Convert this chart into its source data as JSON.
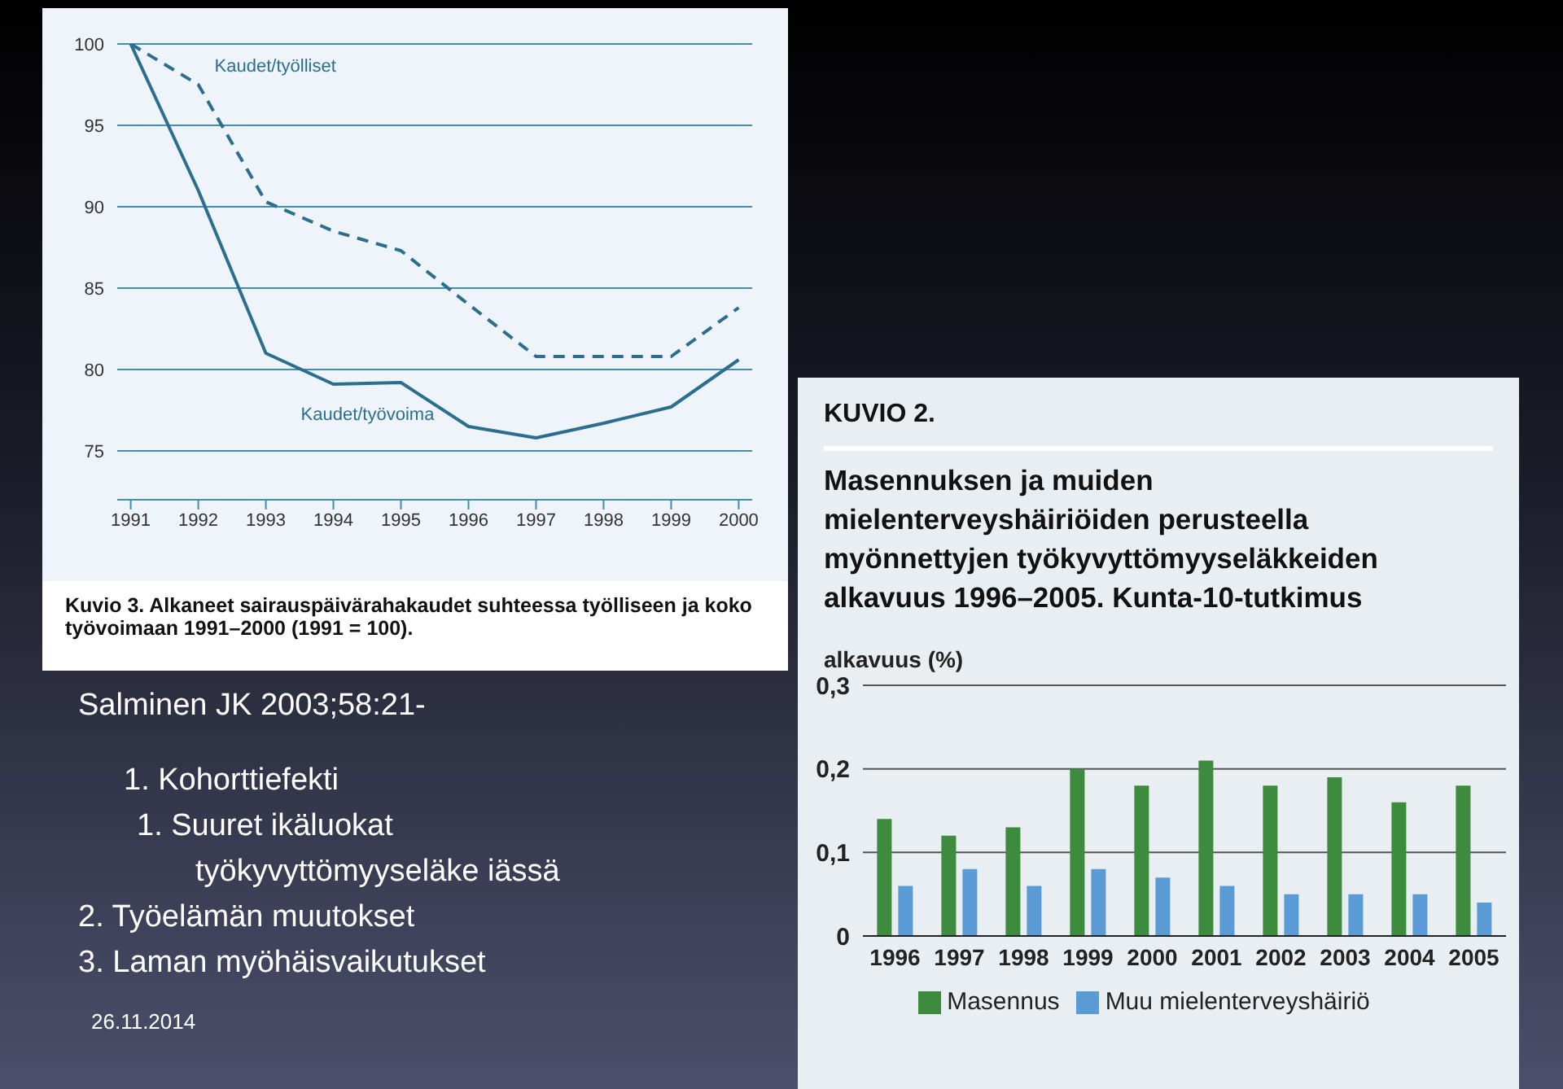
{
  "chart_data": [
    {
      "type": "line",
      "title": "Kuvio 3. Alkaneet sairauspäivärahakaudet suhteessa työlliseen ja koko työvoimaan 1991–2000 (1991 = 100).",
      "x": [
        1991,
        1992,
        1993,
        1994,
        1995,
        1996,
        1997,
        1998,
        1999,
        2000
      ],
      "xlim": [
        1990.8,
        2000.2
      ],
      "xticks": [
        1991,
        1992,
        1993,
        1994,
        1995,
        1996,
        1997,
        1998,
        1999,
        2000
      ],
      "ylim": [
        72,
        100
      ],
      "yticks": [
        75,
        80,
        85,
        90,
        95,
        100
      ],
      "grid": "y",
      "marker": "none",
      "series": [
        {
          "name": "Kaudet/työlliset",
          "color": "#2b6e8f",
          "line_style": "dashed",
          "values": [
            100,
            97.5,
            90.3,
            88.5,
            87.3,
            84,
            80.8,
            80.8,
            80.8,
            83.8
          ]
        },
        {
          "name": "Kaudet/työvoima",
          "color": "#2b6e8f",
          "line_style": "solid",
          "values": [
            100,
            91,
            81,
            79.1,
            79.2,
            76.5,
            75.8,
            76.7,
            77.7,
            80.6
          ]
        }
      ]
    },
    {
      "type": "bar",
      "title": "KUVIO 2.",
      "subtitle": "Masennuksen ja muiden mielenterveyshäiriöiden perusteella myönnettyjen työkyvyttömyyseläkkeiden alkavuus 1996–2005. Kunta-10-tutkimus",
      "ylabel": "alkavuus (%)",
      "categories": [
        "1996",
        "1997",
        "1998",
        "1999",
        "2000",
        "2001",
        "2002",
        "2003",
        "2004",
        "2005"
      ],
      "ylim": [
        0,
        0.3
      ],
      "yticks": [
        {
          "value": 0,
          "label": "0"
        },
        {
          "value": 0.1,
          "label": "0,1"
        },
        {
          "value": 0.2,
          "label": "0,2"
        },
        {
          "value": 0.3,
          "label": "0,3"
        }
      ],
      "grid": "y",
      "legend": "bottom",
      "series": [
        {
          "name": "Masennus",
          "color": "#3d8c3d",
          "values": [
            0.14,
            0.12,
            0.13,
            0.2,
            0.18,
            0.21,
            0.18,
            0.19,
            0.16,
            0.18
          ]
        },
        {
          "name": "Muu mielenterveyshäiriö",
          "color": "#5b9bd5",
          "values": [
            0.06,
            0.08,
            0.06,
            0.08,
            0.07,
            0.06,
            0.05,
            0.05,
            0.05,
            0.04
          ]
        }
      ]
    },
    {
      "type": "other",
      "annotations": [
        "Salminen JK 2003;58:21-",
        "1. Kohorttiefekti",
        "1. Suuret ikäluokat työkyvyttömyyseläke iässä",
        "2. Työelämän muutokset",
        "3. Laman myöhäisvaikutukset",
        "26.11.2014"
      ]
    }
  ]
}
